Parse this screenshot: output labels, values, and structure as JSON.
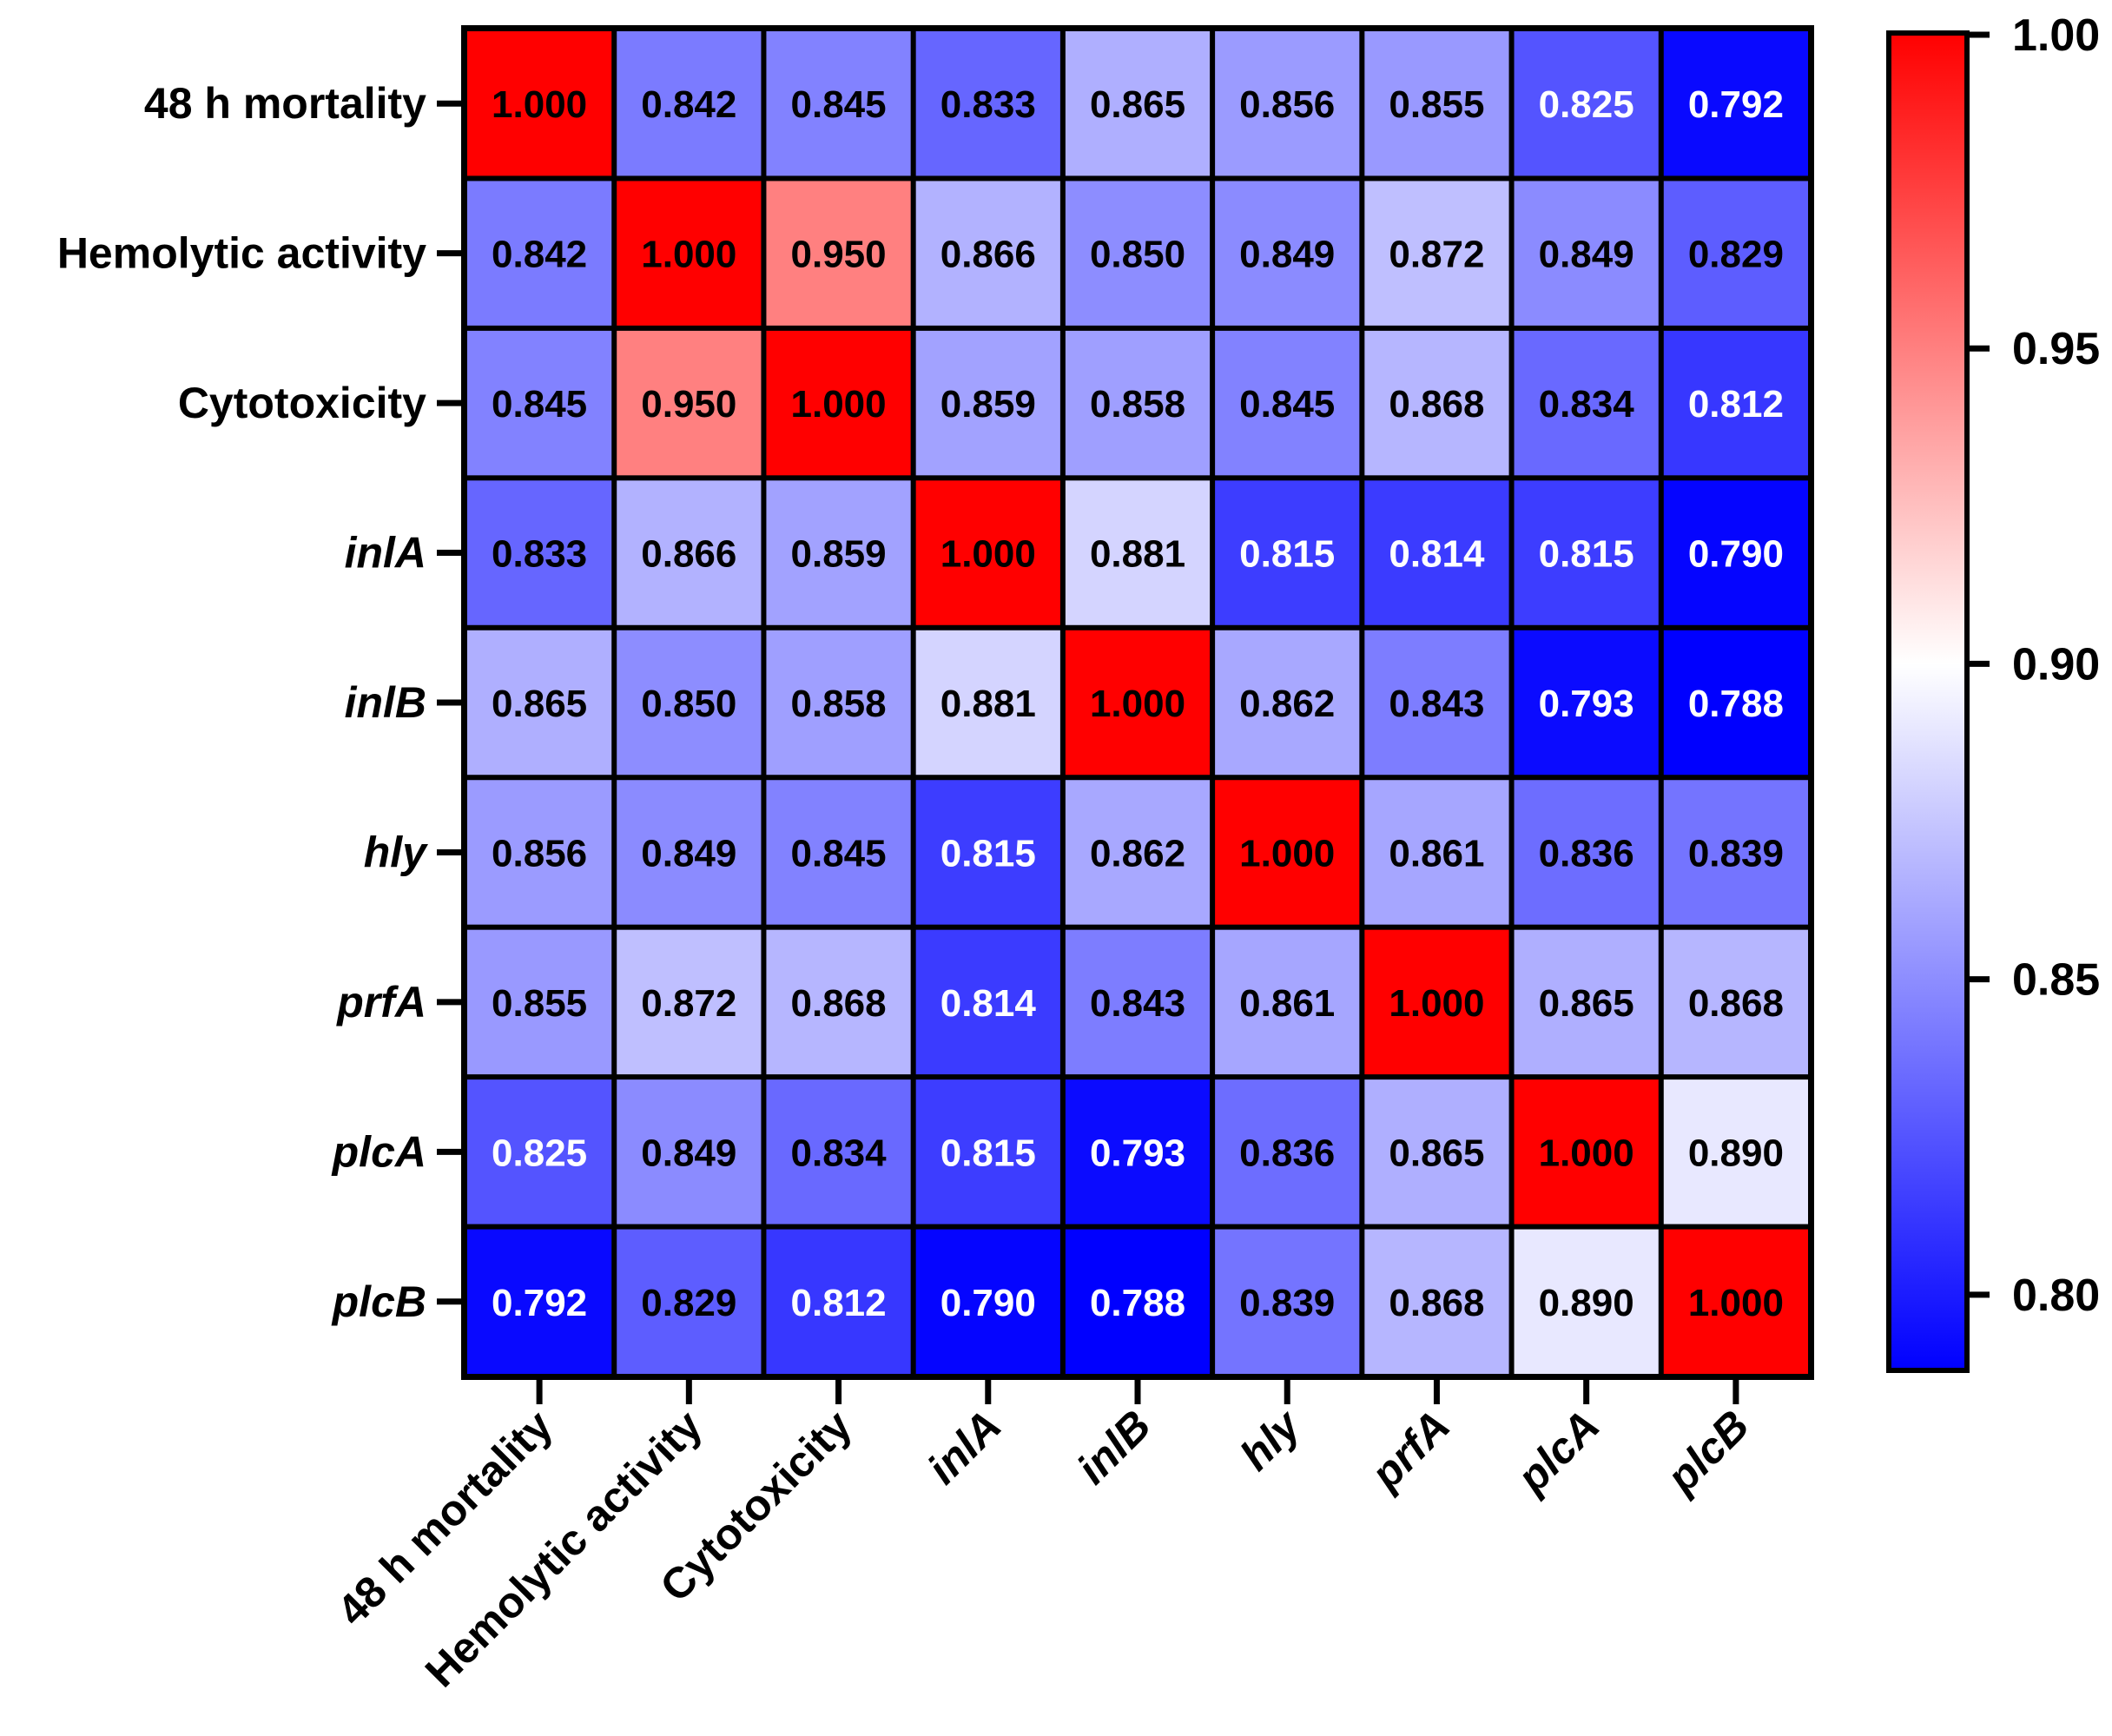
{
  "chart_data": {
    "type": "heatmap",
    "row_labels": [
      "48 h mortality",
      "Hemolytic activity",
      "Cytotoxicity",
      "inlA",
      "inlB",
      "hly",
      "prfA",
      "plcA",
      "plcB"
    ],
    "col_labels": [
      "48 h mortality",
      "Hemolytic activity",
      "Cytotoxicity",
      "inlA",
      "inlB",
      "hly",
      "prfA",
      "plcA",
      "plcB"
    ],
    "italic_labels": [
      "inlA",
      "inlB",
      "hly",
      "prfA",
      "plcA",
      "plcB"
    ],
    "values": [
      [
        1.0,
        0.842,
        0.845,
        0.833,
        0.865,
        0.856,
        0.855,
        0.825,
        0.792
      ],
      [
        0.842,
        1.0,
        0.95,
        0.866,
        0.85,
        0.849,
        0.872,
        0.849,
        0.829
      ],
      [
        0.845,
        0.95,
        1.0,
        0.859,
        0.858,
        0.845,
        0.868,
        0.834,
        0.812
      ],
      [
        0.833,
        0.866,
        0.859,
        1.0,
        0.881,
        0.815,
        0.814,
        0.815,
        0.79
      ],
      [
        0.865,
        0.85,
        0.858,
        0.881,
        1.0,
        0.862,
        0.843,
        0.793,
        0.788
      ],
      [
        0.856,
        0.849,
        0.845,
        0.815,
        0.862,
        1.0,
        0.861,
        0.836,
        0.839
      ],
      [
        0.855,
        0.872,
        0.868,
        0.814,
        0.843,
        0.861,
        1.0,
        0.865,
        0.868
      ],
      [
        0.825,
        0.849,
        0.834,
        0.815,
        0.793,
        0.836,
        0.865,
        1.0,
        0.89
      ],
      [
        0.792,
        0.829,
        0.812,
        0.79,
        0.788,
        0.839,
        0.868,
        0.89,
        1.0
      ]
    ],
    "value_labels": [
      [
        "1.000",
        "0.842",
        "0.845",
        "0.833",
        "0.865",
        "0.856",
        "0.855",
        "0.825",
        "0.792"
      ],
      [
        "0.842",
        "1.000",
        "0.950",
        "0.866",
        "0.850",
        "0.849",
        "0.872",
        "0.849",
        "0.829"
      ],
      [
        "0.845",
        "0.950",
        "1.000",
        "0.859",
        "0.858",
        "0.845",
        "0.868",
        "0.834",
        "0.812"
      ],
      [
        "0.833",
        "0.866",
        "0.859",
        "1.000",
        "0.881",
        "0.815",
        "0.814",
        "0.815",
        "0.790"
      ],
      [
        "0.865",
        "0.850",
        "0.858",
        "0.881",
        "1.000",
        "0.862",
        "0.843",
        "0.793",
        "0.788"
      ],
      [
        "0.856",
        "0.849",
        "0.845",
        "0.815",
        "0.862",
        "1.000",
        "0.861",
        "0.836",
        "0.839"
      ],
      [
        "0.855",
        "0.872",
        "0.868",
        "0.814",
        "0.843",
        "0.861",
        "1.000",
        "0.865",
        "0.868"
      ],
      [
        "0.825",
        "0.849",
        "0.834",
        "0.815",
        "0.793",
        "0.836",
        "0.865",
        "1.000",
        "0.890"
      ],
      [
        "0.792",
        "0.829",
        "0.812",
        "0.790",
        "0.788",
        "0.839",
        "0.868",
        "0.890",
        "1.000"
      ]
    ],
    "colorbar": {
      "min": 0.788,
      "max": 1.0,
      "center": 0.9,
      "ticks": [
        0.8,
        0.85,
        0.9,
        0.95,
        1.0
      ],
      "tick_labels": [
        "0.80",
        "0.85",
        "0.90",
        "0.95",
        "1.00"
      ],
      "colors": {
        "low": "#0000ff",
        "mid": "#ffffff",
        "high": "#ff0000"
      }
    },
    "title": "",
    "xlabel": "",
    "ylabel": ""
  }
}
